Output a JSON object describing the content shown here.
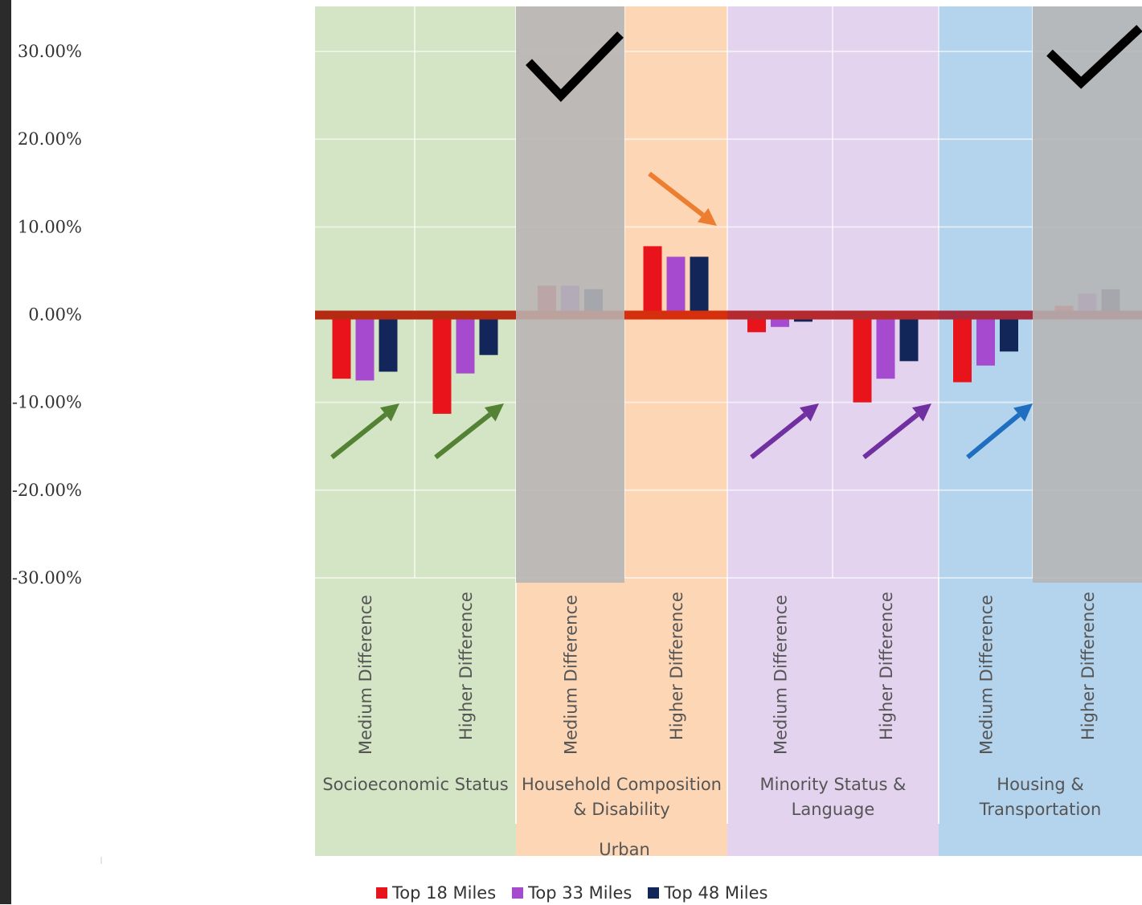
{
  "chart_data": {
    "type": "bar",
    "yticks": [
      "30.00%",
      "20.00%",
      "10.00%",
      "0.00%",
      "-10.00%",
      "-20.00%",
      "-30.00%"
    ],
    "ylim": [
      -30,
      30
    ],
    "categories": [
      "Medium Difference",
      "Higher Difference",
      "Medium Difference",
      "Higher Difference",
      "Medium Difference",
      "Higher Difference",
      "Medium Difference",
      "Higher Difference"
    ],
    "groups": [
      {
        "label_lines": [
          "Socioeconomic Status"
        ],
        "color": "#d4e5c5",
        "arrow_color": "#538234"
      },
      {
        "label_lines": [
          "Household Composition",
          "& Disability"
        ],
        "color": "#fdd7b5",
        "arrow_color": "#ed7d31"
      },
      {
        "label_lines": [
          "Minority Status &",
          "Language"
        ],
        "color": "#e3d3ef",
        "arrow_color": "#7030a0"
      },
      {
        "label_lines": [
          "Housing &",
          "Transportation"
        ],
        "color": "#b4d3ec",
        "arrow_color": "#1f6fc0"
      }
    ],
    "outer_label": "Urban",
    "series": [
      {
        "name": "Top 18 Miles",
        "color": "#e8131b",
        "values": [
          -7.3,
          -11.3,
          3.3,
          7.8,
          -2.0,
          -10.0,
          -7.7,
          1.0
        ]
      },
      {
        "name": "Top 33 Miles",
        "color": "#a64ad0",
        "values": [
          -7.5,
          -6.7,
          3.3,
          6.6,
          -1.4,
          -7.3,
          -5.8,
          2.4
        ]
      },
      {
        "name": "Top 48 Miles",
        "color": "#13265a",
        "values": [
          -6.5,
          -4.6,
          2.9,
          6.6,
          -0.8,
          -5.3,
          -4.2,
          2.9
        ]
      }
    ],
    "grayed_categories": [
      2,
      7
    ],
    "checkmark_categories": [
      2,
      7
    ],
    "grid": true
  },
  "legend": [
    {
      "name": "Top 18 Miles",
      "color": "#e8131b"
    },
    {
      "name": "Top 33 Miles",
      "color": "#a64ad0"
    },
    {
      "name": "Top 48 Miles",
      "color": "#13265a"
    }
  ]
}
